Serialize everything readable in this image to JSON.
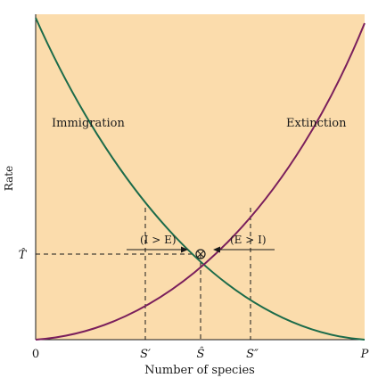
{
  "colors": {
    "plot_bg": "#fbdcac",
    "immigration": "#1c6b4a",
    "extinction": "#7a1f5c",
    "guides": "#1a1a1a",
    "axis": "#1a1a1a"
  },
  "diagram": {
    "ylabel": "Rate",
    "xlabel": "Number of species",
    "curves": {
      "immigration": "Immigration",
      "extinction": "Extinction"
    },
    "x_ticks": {
      "origin": "0",
      "s_prime": "S′",
      "s_hat": "Ŝ",
      "s_double_prime": "S″",
      "p": "P"
    },
    "y_tick": "T̂",
    "annotations": {
      "left": "(I > E)",
      "right": "(E > I)"
    }
  }
}
